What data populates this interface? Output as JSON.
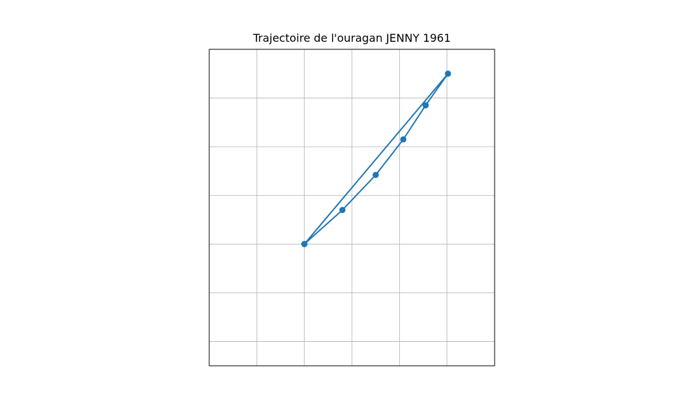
{
  "chart_data": {
    "type": "line",
    "title": "Trajectoire de l'ouragan JENNY 1961",
    "xlabel": "",
    "ylabel": "",
    "xlim": [
      -2,
      4
    ],
    "ylim": [
      -2.5,
      4
    ],
    "grid": true,
    "x_ticks_labeled": false,
    "y_ticks_labeled": false,
    "series": [
      {
        "marker": "circle",
        "color": "#1f77b4",
        "points": [
          {
            "x": 0.0,
            "y": 0.0
          },
          {
            "x": 0.8,
            "y": 0.7
          },
          {
            "x": 1.5,
            "y": 1.42
          },
          {
            "x": 2.08,
            "y": 2.15
          },
          {
            "x": 2.55,
            "y": 2.85
          },
          {
            "x": 3.02,
            "y": 3.5
          },
          {
            "x": 0.0,
            "y": 0.0
          }
        ]
      }
    ]
  }
}
